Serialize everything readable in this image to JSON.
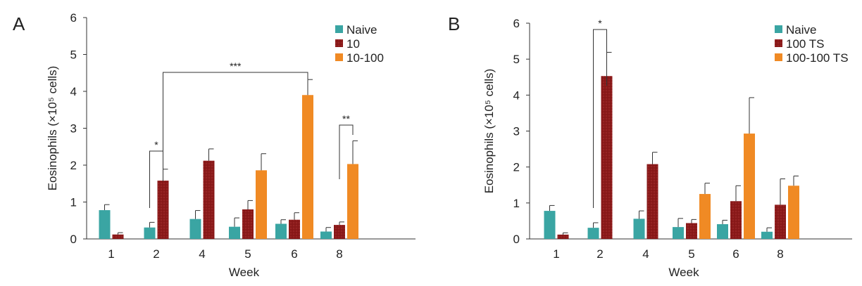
{
  "chart_data": [
    {
      "type": "bar",
      "panel_label": "A",
      "title": "",
      "xlabel": "Week",
      "ylabel": "Eosinophils (×10⁵ cells)",
      "ylim": [
        0,
        6
      ],
      "yticks": [
        0,
        1,
        2,
        3,
        4,
        5,
        6
      ],
      "grid": false,
      "legend_position": "top-right",
      "categories": [
        "1",
        "2",
        "4",
        "5",
        "6",
        "8"
      ],
      "series": [
        {
          "name": "Naive",
          "color": "#3aa5a3",
          "values": [
            0.78,
            0.31,
            0.54,
            0.33,
            0.41,
            0.2
          ],
          "errors": [
            0.15,
            0.14,
            0.23,
            0.24,
            0.11,
            0.11
          ]
        },
        {
          "name": "10",
          "color": "#8b1a1a",
          "values": [
            0.12,
            1.58,
            2.12,
            0.8,
            0.52,
            0.38
          ],
          "errors": [
            0.05,
            0.31,
            0.32,
            0.24,
            0.19,
            0.08
          ]
        },
        {
          "name": "10-100",
          "color": "#f08a24",
          "values": [
            null,
            null,
            null,
            1.86,
            3.9,
            2.03
          ],
          "errors": [
            null,
            null,
            null,
            0.45,
            0.42,
            0.63
          ]
        }
      ],
      "annotations": [
        {
          "label": "*",
          "from": {
            "category": "2",
            "series": "Naive"
          },
          "to": {
            "category": "2",
            "series": "10"
          }
        },
        {
          "label": "***",
          "from": {
            "category": "2",
            "series": "10"
          },
          "to": {
            "category": "6",
            "series": "10-100"
          }
        },
        {
          "label": "**",
          "from": {
            "category": "8",
            "series": "10"
          },
          "to": {
            "category": "8",
            "series": "10-100"
          }
        }
      ]
    },
    {
      "type": "bar",
      "panel_label": "B",
      "title": "",
      "xlabel": "Week",
      "ylabel": "Eosinophils (×10⁵ cells)",
      "ylim": [
        0,
        6
      ],
      "yticks": [
        0,
        1,
        2,
        3,
        4,
        5,
        6
      ],
      "grid": false,
      "legend_position": "top-right",
      "categories": [
        "1",
        "2",
        "4",
        "5",
        "6",
        "8"
      ],
      "series": [
        {
          "name": "Naive",
          "color": "#3aa5a3",
          "values": [
            0.78,
            0.31,
            0.56,
            0.33,
            0.41,
            0.2
          ],
          "errors": [
            0.15,
            0.14,
            0.22,
            0.24,
            0.11,
            0.11
          ]
        },
        {
          "name": "100 TS",
          "color": "#8b1a1a",
          "values": [
            0.12,
            4.53,
            2.08,
            0.44,
            1.05,
            0.95
          ],
          "errors": [
            0.05,
            0.66,
            0.33,
            0.1,
            0.43,
            0.72
          ]
        },
        {
          "name": "100-100 TS",
          "color": "#f08a24",
          "values": [
            null,
            null,
            null,
            1.25,
            2.93,
            1.48
          ],
          "errors": [
            null,
            null,
            null,
            0.3,
            1.0,
            0.27
          ]
        }
      ],
      "annotations": [
        {
          "label": "*",
          "from": {
            "category": "2",
            "series": "Naive"
          },
          "to": {
            "category": "2",
            "series": "100 TS"
          }
        }
      ]
    }
  ]
}
